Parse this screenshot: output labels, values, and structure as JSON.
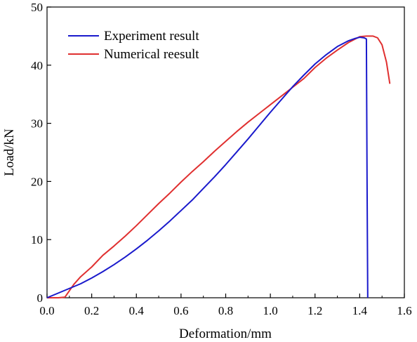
{
  "chart_data": {
    "type": "line",
    "title": "",
    "xlabel": "Deformation/mm",
    "ylabel": "Load/kN",
    "xlim": [
      0.0,
      1.6
    ],
    "ylim": [
      0,
      50
    ],
    "xticks": [
      "0.0",
      "0.2",
      "0.4",
      "0.6",
      "0.8",
      "1.0",
      "1.2",
      "1.4",
      "1.6"
    ],
    "yticks": [
      "0",
      "10",
      "20",
      "30",
      "40",
      "50"
    ],
    "grid": false,
    "legend_position": "top-left",
    "series": [
      {
        "name": "Experiment result",
        "color": "#1a1acc",
        "x": [
          0.0,
          0.05,
          0.1,
          0.15,
          0.2,
          0.25,
          0.3,
          0.35,
          0.4,
          0.45,
          0.5,
          0.55,
          0.6,
          0.65,
          0.7,
          0.75,
          0.8,
          0.85,
          0.9,
          0.95,
          1.0,
          1.05,
          1.1,
          1.15,
          1.2,
          1.25,
          1.3,
          1.35,
          1.38,
          1.4,
          1.42,
          1.43,
          1.433,
          1.436
        ],
        "y": [
          0.0,
          0.8,
          1.6,
          2.4,
          3.4,
          4.5,
          5.7,
          7.0,
          8.4,
          9.9,
          11.5,
          13.2,
          15.0,
          16.8,
          18.8,
          20.8,
          22.9,
          25.1,
          27.3,
          29.6,
          31.9,
          34.1,
          36.3,
          38.3,
          40.2,
          41.8,
          43.2,
          44.2,
          44.6,
          44.8,
          44.7,
          44.5,
          20.0,
          0.0
        ]
      },
      {
        "name": "Numerical reesult",
        "color": "#e03030",
        "x": [
          0.0,
          0.05,
          0.08,
          0.1,
          0.12,
          0.15,
          0.2,
          0.25,
          0.3,
          0.35,
          0.4,
          0.45,
          0.5,
          0.55,
          0.6,
          0.65,
          0.7,
          0.75,
          0.8,
          0.85,
          0.9,
          0.95,
          1.0,
          1.05,
          1.1,
          1.15,
          1.2,
          1.25,
          1.3,
          1.35,
          1.4,
          1.43,
          1.46,
          1.48,
          1.5,
          1.52,
          1.535
        ],
        "y": [
          0.0,
          0.0,
          0.1,
          1.2,
          2.3,
          3.6,
          5.3,
          7.3,
          8.9,
          10.6,
          12.4,
          14.3,
          16.2,
          18.0,
          19.9,
          21.7,
          23.4,
          25.2,
          26.9,
          28.6,
          30.2,
          31.7,
          33.2,
          34.7,
          36.2,
          37.7,
          39.6,
          41.2,
          42.6,
          43.9,
          44.9,
          45.0,
          45.0,
          44.7,
          43.5,
          40.5,
          36.8
        ]
      }
    ]
  }
}
